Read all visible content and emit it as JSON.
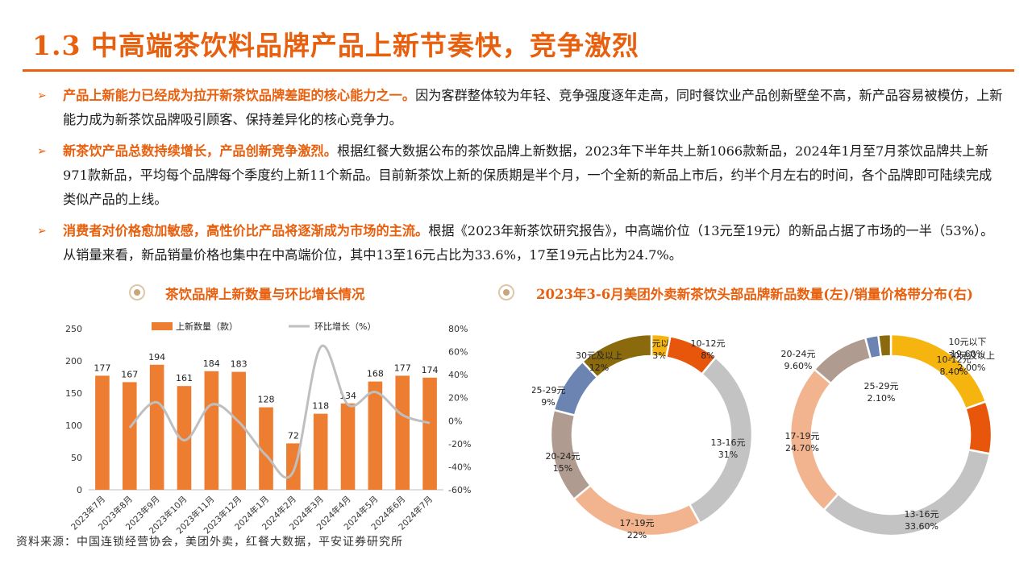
{
  "title": "1.3 中高端茶饮料品牌产品上新节奏快，竞争激烈",
  "bullets": [
    {
      "lead": "产品上新能力已经成为拉开新茶饮品牌差距的核心能力之一。",
      "text": "因为客群整体较为年轻、竞争强度逐年走高，同时餐饮业产品创新壁垒不高，新产品容易被模仿，上新能力成为新茶饮品牌吸引顾客、保持差异化的核心竞争力。"
    },
    {
      "lead": "新茶饮产品总数持续增长，产品创新竞争激烈。",
      "text": "根据红餐大数据公布的茶饮品牌上新数据，2023年下半年共上新1066款新品，2024年1月至7月茶饮品牌共上新971款新品，平均每个品牌每个季度约上新11个新品。目前新茶饮上新的保质期是半个月，一个全新的新品上市后，约半个月左右的时间，各个品牌即可陆续完成类似产品的上线。"
    },
    {
      "lead": "消费者对价格愈加敏感，高性价比产品将逐渐成为市场的主流。",
      "text": "根据《2023年新茶饮研究报告》，中高端价位（13元至19元）的新品占据了市场的一半（53%）。从销量来看，新品销量价格也集中在中高端价位，其中13至16元占比为33.6%，17至19元占比为24.7%。"
    }
  ],
  "sections": {
    "left_title": "茶饮品牌上新数量与环比增长情况",
    "right_title": "2023年3-6月美团外卖新茶饮头部品牌新品数量(左)/销量价格带分布(右)"
  },
  "source": "资料来源：中国连锁经营协会，美团外卖，红餐大数据，平安证券研究所",
  "colors": {
    "accent": "#e8600e",
    "bar": "#ed7d31",
    "line": "#bfbfbf"
  },
  "chart_data": [
    {
      "type": "bar",
      "categories": [
        "2023年7月",
        "2023年8月",
        "2023年9月",
        "2023年10月",
        "2023年11月",
        "2023年12月",
        "2024年1月",
        "2024年2月",
        "2024年3月",
        "2024年4月",
        "2024年5月",
        "2024年6月",
        "2024年7月"
      ],
      "series": [
        {
          "name": "上新数量（款）",
          "type": "bar",
          "axis": "left",
          "values": [
            177,
            167,
            194,
            161,
            184,
            183,
            128,
            72,
            118,
            134,
            168,
            177,
            174
          ]
        },
        {
          "name": "环比增长（%）",
          "type": "line",
          "axis": "right",
          "values": [
            null,
            -6,
            16,
            -17,
            14,
            -1,
            -30,
            -44,
            64,
            14,
            25,
            5,
            -2
          ]
        }
      ],
      "y_left": {
        "min": 0,
        "max": 250,
        "ticks": [
          "0",
          "50",
          "100",
          "150",
          "200",
          "250"
        ]
      },
      "y_right": {
        "min": -60,
        "max": 80,
        "ticks": [
          "-60%",
          "-40%",
          "-20%",
          "0%",
          "20%",
          "40%",
          "60%",
          "80%"
        ]
      },
      "legend": "top"
    },
    {
      "type": "pie",
      "slices": [
        {
          "label": "10元以下",
          "value_label": "3%",
          "value": 3,
          "color": "#f6b40e"
        },
        {
          "label": "10-12元",
          "value_label": "8%",
          "value": 8,
          "color": "#e8560c"
        },
        {
          "label": "13-16元",
          "value_label": "31%",
          "value": 31,
          "color": "#c3c3c3"
        },
        {
          "label": "17-19元",
          "value_label": "22%",
          "value": 22,
          "color": "#f1b48f"
        },
        {
          "label": "20-24元",
          "value_label": "15%",
          "value": 15,
          "color": "#af9b8f"
        },
        {
          "label": "25-29元",
          "value_label": "9%",
          "value": 9,
          "color": "#6c84b2"
        },
        {
          "label": "30元及以上",
          "value_label": "12%",
          "value": 12,
          "color": "#8a6a0c"
        }
      ]
    },
    {
      "type": "pie",
      "slices": [
        {
          "label": "10元以下",
          "value_label": "19.60%",
          "value": 19.6,
          "color": "#f6b40e"
        },
        {
          "label": "10-12元",
          "value_label": "8.40%",
          "value": 8.4,
          "color": "#e8560c"
        },
        {
          "label": "13-16元",
          "value_label": "33.60%",
          "value": 33.6,
          "color": "#c3c3c3"
        },
        {
          "label": "17-19元",
          "value_label": "24.70%",
          "value": 24.7,
          "color": "#f1b48f"
        },
        {
          "label": "20-24元",
          "value_label": "9.60%",
          "value": 9.6,
          "color": "#af9b8f"
        },
        {
          "label": "25-29元",
          "value_label": "2.10%",
          "value": 2.1,
          "color": "#6c84b2"
        },
        {
          "label": "30元及以上",
          "value_label": "2.00%",
          "value": 2.0,
          "color": "#8a6a0c"
        }
      ]
    }
  ]
}
